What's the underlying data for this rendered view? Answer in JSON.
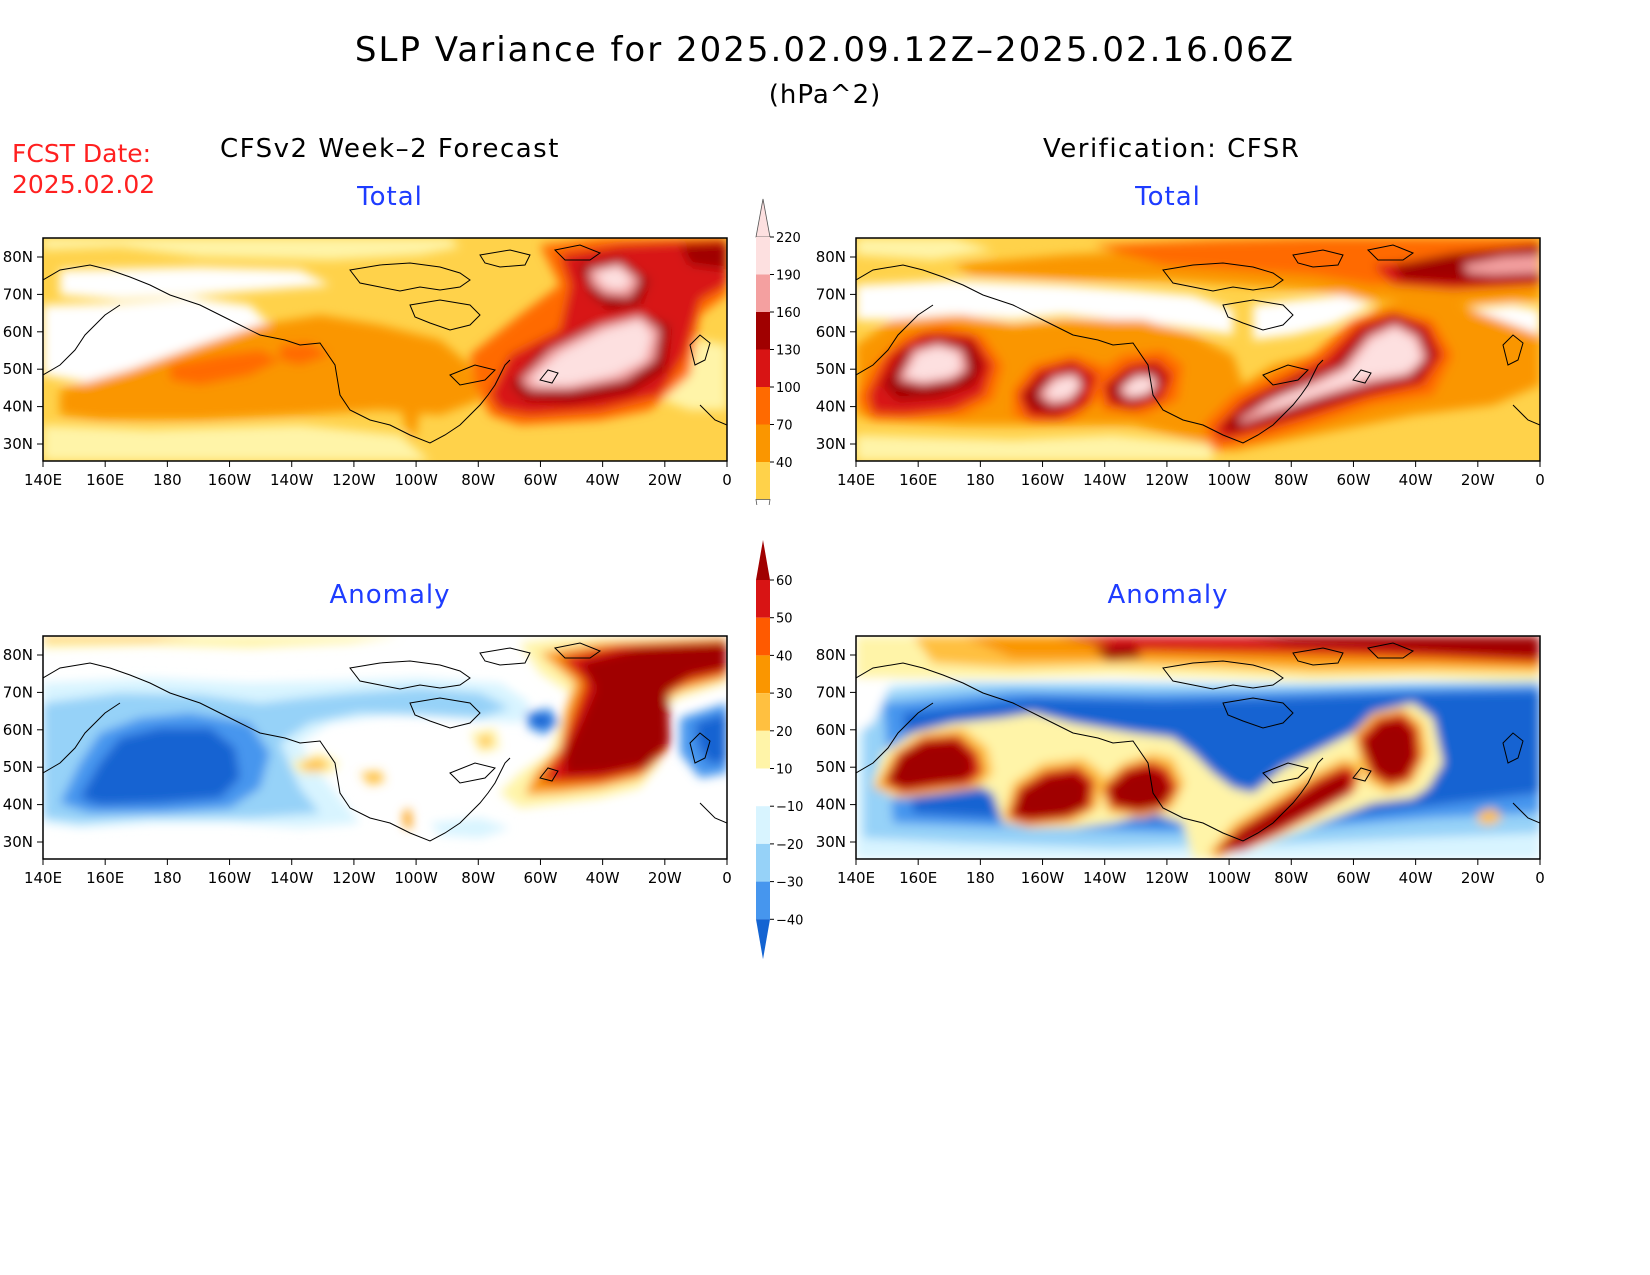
{
  "title": "SLP Variance for 2025.02.09.12Z–2025.02.16.06Z",
  "units": "(hPa^2)",
  "fcst_date": {
    "label": "FCST Date:",
    "value": "2025.02.02"
  },
  "columns": {
    "left": "CFSv2 Week–2 Forecast",
    "right": "Verification: CFSR"
  },
  "subtitles": {
    "total": "Total",
    "anomaly": "Anomaly"
  },
  "axes": {
    "lon_ticks": [
      "140E",
      "160E",
      "180",
      "160W",
      "140W",
      "120W",
      "100W",
      "80W",
      "60W",
      "40W",
      "20W",
      "0"
    ],
    "lat_ticks": [
      "80N",
      "70N",
      "60N",
      "50N",
      "40N",
      "30N"
    ]
  },
  "colorbars": {
    "total": {
      "labels": [
        "220",
        "190",
        "160",
        "130",
        "100",
        "70",
        "40"
      ],
      "colors": [
        "#fde0e0",
        "#f4a0a0",
        "#a00000",
        "#d81414",
        "#ff6a00",
        "#fa9600",
        "#ffd24a",
        "#fff4a8"
      ]
    },
    "anomaly": {
      "labels": [
        "60",
        "50",
        "40",
        "30",
        "20",
        "10",
        "−10",
        "−20",
        "−30",
        "−40"
      ],
      "colors": [
        "#a00000",
        "#d81414",
        "#ff5a00",
        "#fa9600",
        "#ffc040",
        "#fff4a8",
        "#ffffff",
        "#d8f4ff",
        "#96d2f8",
        "#4696ee",
        "#1464d2"
      ]
    }
  }
}
